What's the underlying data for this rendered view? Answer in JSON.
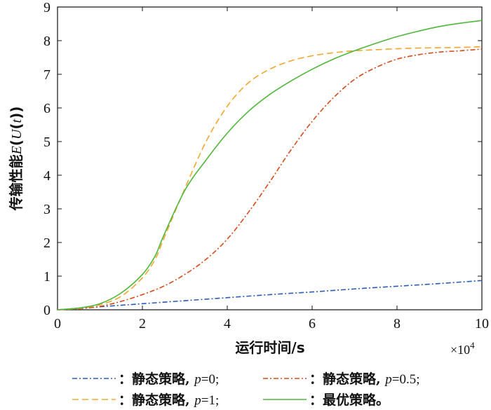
{
  "chart_data": {
    "type": "line",
    "ylabel": "传输性能E(U(t))",
    "ylabel_parts": [
      "传输性能",
      "E",
      "(",
      "U",
      "(",
      "t",
      "))"
    ],
    "xlabel": "运行时间/s",
    "x_multiplier": "×10",
    "x_multiplier_exp": "4",
    "xlim": [
      0,
      10
    ],
    "ylim": [
      0,
      9
    ],
    "x_ticks": [
      0,
      2,
      4,
      6,
      8,
      10
    ],
    "y_ticks": [
      0,
      1,
      2,
      3,
      4,
      5,
      6,
      7,
      8,
      9
    ],
    "grid": false,
    "legend_position": "bottom",
    "series": [
      {
        "name": "：静态策略, p=0;",
        "name_prefix": "：静态策略, ",
        "name_var": "p",
        "name_suffix": "=0;",
        "color": "#2a5bb5",
        "dash": "7,3,2,3",
        "x": [
          0,
          1,
          2,
          3,
          4,
          5,
          6,
          7,
          8,
          9,
          10
        ],
        "y": [
          0,
          0.09,
          0.18,
          0.27,
          0.36,
          0.45,
          0.53,
          0.62,
          0.7,
          0.78,
          0.87
        ]
      },
      {
        "name": "：静态策略, p=0.5;",
        "name_prefix": "：静态策略, ",
        "name_var": "p",
        "name_suffix": "=0.5;",
        "color": "#d44a1a",
        "dash": "7,3,2,3",
        "x": [
          0,
          0.5,
          1,
          1.5,
          2,
          2.5,
          3,
          3.5,
          4,
          4.5,
          5,
          5.5,
          6,
          6.5,
          7,
          7.5,
          8,
          8.5,
          9,
          9.5,
          10
        ],
        "y": [
          0,
          0.03,
          0.1,
          0.25,
          0.45,
          0.7,
          1.05,
          1.5,
          2.1,
          2.9,
          3.8,
          4.75,
          5.6,
          6.3,
          6.85,
          7.2,
          7.45,
          7.58,
          7.66,
          7.7,
          7.75
        ]
      },
      {
        "name": "：静态策略, p=1;",
        "name_prefix": "：静态策略, ",
        "name_var": "p",
        "name_suffix": "=1;",
        "color": "#f0a830",
        "dash": "9,5",
        "x": [
          0,
          0.5,
          1,
          1.5,
          2,
          2.3,
          2.5,
          3,
          3.5,
          4,
          4.5,
          5,
          5.5,
          6,
          6.5,
          7,
          7.5,
          8,
          8.5,
          9,
          9.5,
          10
        ],
        "y": [
          0,
          0.04,
          0.15,
          0.4,
          0.95,
          1.5,
          2.1,
          3.6,
          5.0,
          6.05,
          6.75,
          7.15,
          7.4,
          7.55,
          7.64,
          7.7,
          7.73,
          7.76,
          7.78,
          7.79,
          7.8,
          7.82
        ]
      },
      {
        "name": "：最优策略。",
        "name_prefix": "：最优策略。",
        "name_var": "",
        "name_suffix": "",
        "color": "#4fb63a",
        "dash": "",
        "x": [
          0,
          0.5,
          1,
          1.5,
          2,
          2.3,
          2.5,
          3,
          3.5,
          4,
          4.5,
          5,
          5.5,
          6,
          6.5,
          7,
          7.5,
          8,
          8.5,
          9,
          9.5,
          10
        ],
        "y": [
          0,
          0.05,
          0.18,
          0.5,
          1.05,
          1.6,
          2.2,
          3.55,
          4.45,
          5.25,
          5.9,
          6.4,
          6.8,
          7.15,
          7.45,
          7.7,
          7.92,
          8.12,
          8.28,
          8.42,
          8.52,
          8.6
        ]
      }
    ]
  }
}
